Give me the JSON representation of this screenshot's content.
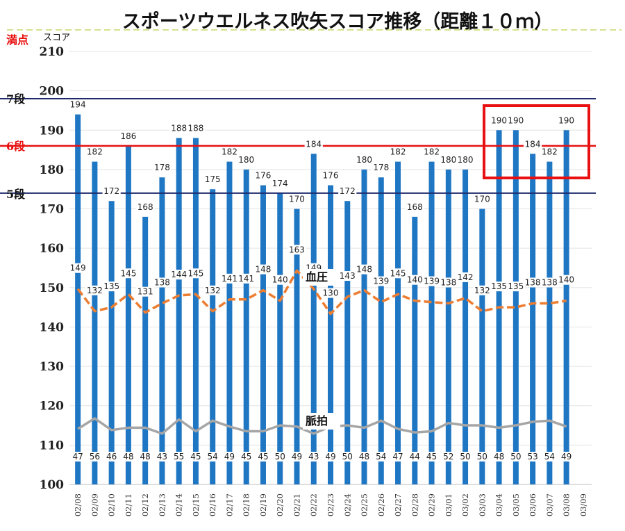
{
  "chart_data": {
    "type": "bar",
    "title": "スポーツウエルネス吹矢スコア推移（距離１０ｍ）",
    "ylabel": "スコア",
    "ylim": [
      100,
      210
    ],
    "yticks": [
      100,
      110,
      120,
      130,
      140,
      150,
      160,
      170,
      180,
      190,
      200,
      210
    ],
    "grid": true,
    "categories": [
      "02/08",
      "02/09",
      "02/10",
      "02/11",
      "02/12",
      "02/13",
      "02/14",
      "02/15",
      "02/16",
      "02/17",
      "02/18",
      "02/19",
      "02/20",
      "02/21",
      "02/22",
      "02/23",
      "02/24",
      "02/25",
      "02/26",
      "02/27",
      "02/28",
      "02/29",
      "03/01",
      "03/02",
      "03/03",
      "03/04",
      "03/05",
      "03/06",
      "03/07",
      "03/08",
      "03/09"
    ],
    "series": [
      {
        "name": "スコア",
        "type": "bar",
        "color": "#1f77c4",
        "values": [
          194,
          182,
          172,
          186,
          168,
          178,
          188,
          188,
          175,
          182,
          180,
          176,
          174,
          170,
          184,
          176,
          172,
          180,
          178,
          182,
          168,
          182,
          180,
          180,
          170,
          190,
          190,
          184,
          182,
          190,
          null
        ]
      },
      {
        "name": "血圧",
        "type": "line",
        "color": "#ed7d31",
        "values": [
          149,
          132,
          135,
          145,
          131,
          138,
          144,
          145,
          132,
          141,
          141,
          148,
          140,
          163,
          149,
          130,
          143,
          148,
          139,
          145,
          140,
          139,
          138,
          142,
          132,
          135,
          135,
          138,
          138,
          140,
          null
        ]
      },
      {
        "name": "脈拍",
        "type": "line",
        "color": "#a5a5a5",
        "values": [
          47,
          56,
          46,
          48,
          48,
          43,
          55,
          45,
          54,
          49,
          45,
          45,
          50,
          49,
          43,
          49,
          50,
          48,
          54,
          47,
          44,
          45,
          52,
          50,
          50,
          48,
          50,
          53,
          54,
          49,
          null
        ]
      }
    ],
    "reference_lines": [
      {
        "label": "7段",
        "value": 198,
        "color": "#1f2a6b"
      },
      {
        "label": "6段",
        "value": 186,
        "color": "#e81010"
      },
      {
        "label": "5段",
        "value": 174,
        "color": "#1f2a6b"
      }
    ],
    "full_score_label": "満点",
    "highlight_color": "#e81010"
  }
}
